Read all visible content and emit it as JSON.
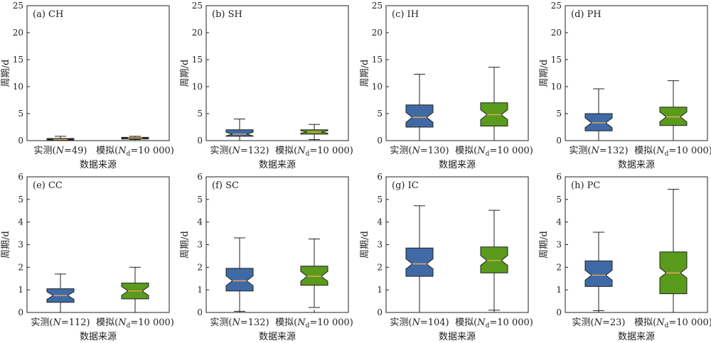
{
  "chart_data": [
    {
      "panel": "(a) CH",
      "type": "boxplot",
      "ylabel": "周期/d",
      "xlabel": "数据来源",
      "ylim": [
        0,
        25
      ],
      "yticks": [
        0,
        5,
        10,
        15,
        20,
        25
      ],
      "categories": [
        {
          "prefix": "实测(",
          "var": "N",
          "sub": "",
          "suffix": "=49)"
        },
        {
          "prefix": "模拟(",
          "var": "N",
          "sub": "d",
          "suffix": "=10 000)"
        }
      ],
      "boxes": [
        {
          "color": "#3f6aa6",
          "whisker_low": 0.0,
          "q1": 0.1,
          "median": 0.2,
          "q3": 0.4,
          "whisker_high": 0.8
        },
        {
          "color": "#5a9a1c",
          "whisker_low": 0.2,
          "q1": 0.3,
          "median": 0.5,
          "q3": 0.6,
          "whisker_high": 0.8
        }
      ]
    },
    {
      "panel": "(b) SH",
      "type": "boxplot",
      "ylabel": "周期/d",
      "xlabel": "数据来源",
      "ylim": [
        0,
        25
      ],
      "yticks": [
        0,
        5,
        10,
        15,
        20,
        25
      ],
      "categories": [
        {
          "prefix": "实测(",
          "var": "N",
          "sub": "",
          "suffix": "=132)"
        },
        {
          "prefix": "模拟(",
          "var": "N",
          "sub": "d",
          "suffix": "=10 000)"
        }
      ],
      "boxes": [
        {
          "color": "#3f6aa6",
          "whisker_low": 0.0,
          "q1": 0.8,
          "median": 1.2,
          "q3": 2.0,
          "whisker_high": 4.0
        },
        {
          "color": "#5a9a1c",
          "whisker_low": 0.2,
          "q1": 1.2,
          "median": 1.6,
          "q3": 2.0,
          "whisker_high": 3.0
        }
      ]
    },
    {
      "panel": "(c) IH",
      "type": "boxplot",
      "ylabel": "周期/d",
      "xlabel": "数据来源",
      "ylim": [
        0,
        25
      ],
      "yticks": [
        0,
        5,
        10,
        15,
        20,
        25
      ],
      "categories": [
        {
          "prefix": "实测(",
          "var": "N",
          "sub": "",
          "suffix": "=130)"
        },
        {
          "prefix": "模拟(",
          "var": "N",
          "sub": "d",
          "suffix": "=10 000)"
        }
      ],
      "boxes": [
        {
          "color": "#3f6aa6",
          "whisker_low": 0.0,
          "q1": 2.5,
          "median": 4.3,
          "q3": 6.6,
          "whisker_high": 12.3
        },
        {
          "color": "#5a9a1c",
          "whisker_low": 0.0,
          "q1": 2.7,
          "median": 4.8,
          "q3": 7.0,
          "whisker_high": 13.6
        }
      ]
    },
    {
      "panel": "(d) PH",
      "type": "boxplot",
      "ylabel": "周期/d",
      "xlabel": "数据来源",
      "ylim": [
        0,
        25
      ],
      "yticks": [
        0,
        5,
        10,
        15,
        20,
        25
      ],
      "categories": [
        {
          "prefix": "实测(",
          "var": "N",
          "sub": "",
          "suffix": "=132)"
        },
        {
          "prefix": "模拟(",
          "var": "N",
          "sub": "d",
          "suffix": "=10 000)"
        }
      ],
      "boxes": [
        {
          "color": "#3f6aa6",
          "whisker_low": 0.0,
          "q1": 1.8,
          "median": 3.3,
          "q3": 5.0,
          "whisker_high": 9.6
        },
        {
          "color": "#5a9a1c",
          "whisker_low": 0.0,
          "q1": 2.8,
          "median": 4.4,
          "q3": 6.2,
          "whisker_high": 11.1
        }
      ]
    },
    {
      "panel": "(e) CC",
      "type": "boxplot",
      "ylabel": "周期/d",
      "xlabel": "数据来源",
      "ylim": [
        0,
        6
      ],
      "yticks": [
        0,
        1,
        2,
        3,
        4,
        5,
        6
      ],
      "categories": [
        {
          "prefix": "实测(",
          "var": "N",
          "sub": "",
          "suffix": "=112)"
        },
        {
          "prefix": "模拟(",
          "var": "N",
          "sub": "d",
          "suffix": "=10 000)"
        }
      ],
      "boxes": [
        {
          "color": "#3f6aa6",
          "whisker_low": 0.0,
          "q1": 0.45,
          "median": 0.75,
          "q3": 1.05,
          "whisker_high": 1.7
        },
        {
          "color": "#5a9a1c",
          "whisker_low": 0.0,
          "q1": 0.6,
          "median": 0.95,
          "q3": 1.3,
          "whisker_high": 2.0
        }
      ]
    },
    {
      "panel": "(f) SC",
      "type": "boxplot",
      "ylabel": "周期/d",
      "xlabel": "数据来源",
      "ylim": [
        0,
        6
      ],
      "yticks": [
        0,
        1,
        2,
        3,
        4,
        5,
        6
      ],
      "categories": [
        {
          "prefix": "实测(",
          "var": "N",
          "sub": "",
          "suffix": "=132)"
        },
        {
          "prefix": "模拟(",
          "var": "N",
          "sub": "d",
          "suffix": "=10 000)"
        }
      ],
      "boxes": [
        {
          "color": "#3f6aa6",
          "whisker_low": 0.05,
          "q1": 0.95,
          "median": 1.4,
          "q3": 1.95,
          "whisker_high": 3.3
        },
        {
          "color": "#5a9a1c",
          "whisker_low": 0.22,
          "q1": 1.2,
          "median": 1.6,
          "q3": 2.05,
          "whisker_high": 3.25
        }
      ]
    },
    {
      "panel": "(g) IC",
      "type": "boxplot",
      "ylabel": "周期/d",
      "xlabel": "数据来源",
      "ylim": [
        0,
        6
      ],
      "yticks": [
        0,
        1,
        2,
        3,
        4,
        5,
        6
      ],
      "categories": [
        {
          "prefix": "实测(",
          "var": "N",
          "sub": "",
          "suffix": "=104)"
        },
        {
          "prefix": "模拟(",
          "var": "N",
          "sub": "d",
          "suffix": "=10 000)"
        }
      ],
      "boxes": [
        {
          "color": "#3f6aa6",
          "whisker_low": 0.0,
          "q1": 1.6,
          "median": 2.15,
          "q3": 2.85,
          "whisker_high": 4.72
        },
        {
          "color": "#5a9a1c",
          "whisker_low": 0.1,
          "q1": 1.75,
          "median": 2.3,
          "q3": 2.9,
          "whisker_high": 4.52
        }
      ]
    },
    {
      "panel": "(h) PC",
      "type": "boxplot",
      "ylabel": "周期/d",
      "xlabel": "数据来源",
      "ylim": [
        0,
        6
      ],
      "yticks": [
        0,
        1,
        2,
        3,
        4,
        5,
        6
      ],
      "categories": [
        {
          "prefix": "实测(",
          "var": "N",
          "sub": "",
          "suffix": "=23)"
        },
        {
          "prefix": "模拟(",
          "var": "N",
          "sub": "d",
          "suffix": "=10 000)"
        }
      ],
      "boxes": [
        {
          "color": "#3f6aa6",
          "whisker_low": 0.08,
          "q1": 1.15,
          "median": 1.65,
          "q3": 2.28,
          "whisker_high": 3.55
        },
        {
          "color": "#5a9a1c",
          "whisker_low": 0.0,
          "q1": 0.83,
          "median": 1.75,
          "q3": 2.68,
          "whisker_high": 5.45
        }
      ]
    }
  ],
  "colors": {
    "observed_box": "#3f6aa6",
    "simulated_box": "#5a9a1c",
    "median_line": "#f2a85a",
    "outline": "#222222"
  }
}
